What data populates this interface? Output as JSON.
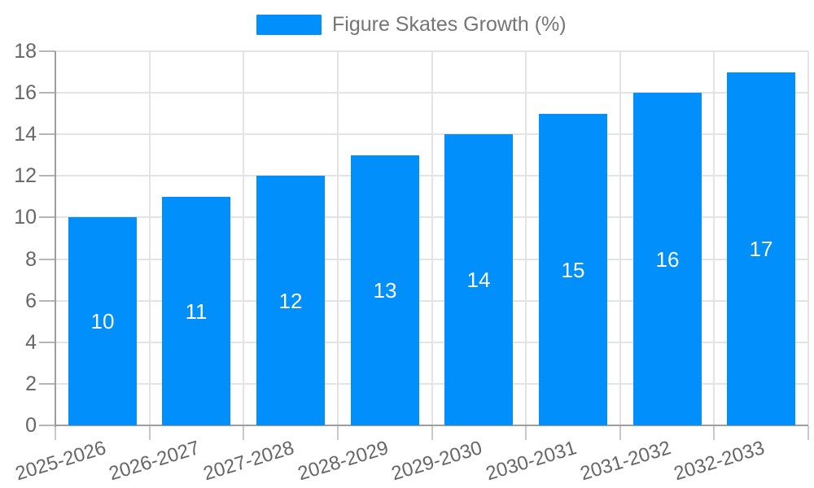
{
  "legend": {
    "series_label": "Figure Skates Growth (%)",
    "marker_color": "#008FFB"
  },
  "chart_data": {
    "type": "bar",
    "title": "",
    "xlabel": "",
    "ylabel": "",
    "categories": [
      "2025-2026",
      "2026-2027",
      "2027-2028",
      "2028-2029",
      "2029-2030",
      "2030-2031",
      "2031-2032",
      "2032-2033"
    ],
    "series": [
      {
        "name": "Figure Skates Growth (%)",
        "values": [
          10,
          11,
          12,
          13,
          14,
          15,
          16,
          17
        ]
      }
    ],
    "value_labels": [
      10,
      11,
      12,
      13,
      14,
      15,
      16,
      17
    ],
    "value_label_position": "inside-center",
    "ylim": [
      0,
      18
    ],
    "ytick_interval": 2,
    "ytick_labels": [
      "0",
      "2",
      "4",
      "6",
      "8",
      "10",
      "12",
      "14",
      "16",
      "18"
    ],
    "x_label_rotation_deg": -17,
    "grid": "on",
    "legend_position": "top-center",
    "colors": {
      "bar": "#008FFB",
      "value_label": "#ffffff",
      "axis_text": "#666666",
      "legend_text": "#757575",
      "grid_line": "#e3e3e3",
      "axis_line": "#9e9e9e",
      "background": "#ffffff"
    }
  }
}
